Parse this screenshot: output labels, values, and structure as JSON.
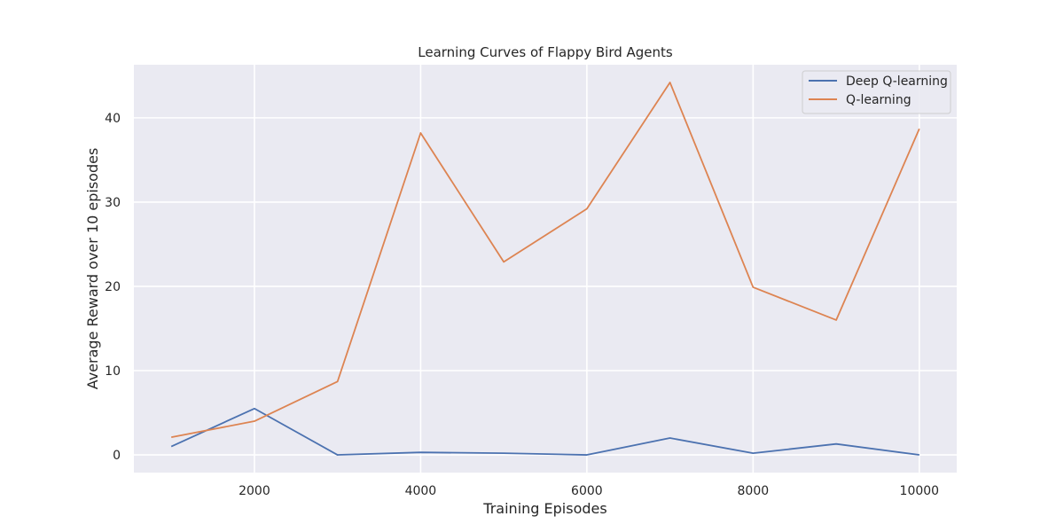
{
  "chart_data": {
    "type": "line",
    "title": "Learning Curves of Flappy Bird Agents",
    "xlabel": "Training Episodes",
    "ylabel": "Average Reward over 10 episodes",
    "x": [
      1000,
      2000,
      3000,
      4000,
      5000,
      6000,
      7000,
      8000,
      9000,
      10000
    ],
    "xlim": [
      550,
      10450
    ],
    "ylim": [
      -2.1,
      46.3
    ],
    "xticks": [
      2000,
      4000,
      6000,
      8000,
      10000
    ],
    "yticks": [
      0,
      10,
      20,
      30,
      40
    ],
    "xtick_labels": [
      "2000",
      "4000",
      "6000",
      "8000",
      "10000"
    ],
    "ytick_labels": [
      "0",
      "10",
      "20",
      "30",
      "40"
    ],
    "grid": true,
    "legend_position": "upper right",
    "background": "#eaeaf2",
    "series": [
      {
        "name": "Deep Q-learning",
        "color": "#4c72b0",
        "values": [
          1.0,
          5.5,
          0.0,
          0.3,
          0.2,
          0.0,
          2.0,
          0.2,
          1.3,
          0.0
        ]
      },
      {
        "name": "Q-learning",
        "color": "#dd8452",
        "values": [
          2.1,
          4.0,
          8.7,
          38.2,
          22.9,
          29.2,
          44.2,
          19.9,
          16.0,
          38.7
        ]
      }
    ]
  }
}
